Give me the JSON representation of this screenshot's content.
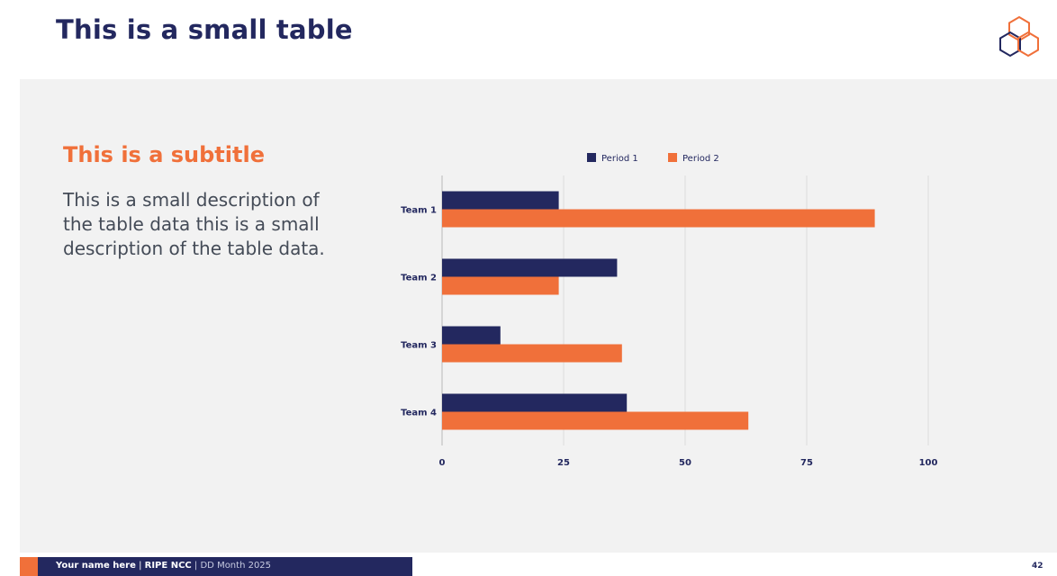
{
  "slide": {
    "title": "This is a small table",
    "subtitle": "This is a subtitle",
    "description": "This is a small description of the table data this is a small description of the table data."
  },
  "footer": {
    "name": "Your name here",
    "sep1": " | ",
    "org": "RIPE NCC",
    "sep2": " | ",
    "date": "DD Month 2025",
    "page": "42"
  },
  "colors": {
    "navy": "#23285f",
    "orange": "#f0703a",
    "panel": "#f2f2f2"
  },
  "logo": {
    "icon": "hexagon-cluster-logo"
  },
  "chart_data": {
    "type": "bar",
    "orientation": "horizontal",
    "categories": [
      "Team 1",
      "Team 2",
      "Team 3",
      "Team 4"
    ],
    "series": [
      {
        "name": "Period 1",
        "color": "#23285f",
        "values": [
          24,
          36,
          12,
          38
        ]
      },
      {
        "name": "Period 2",
        "color": "#f0703a",
        "values": [
          89,
          24,
          37,
          63
        ]
      }
    ],
    "xticks": [
      0,
      25,
      50,
      75,
      100
    ],
    "xlim": [
      0,
      100
    ],
    "grid": true,
    "legend": "top-center"
  }
}
